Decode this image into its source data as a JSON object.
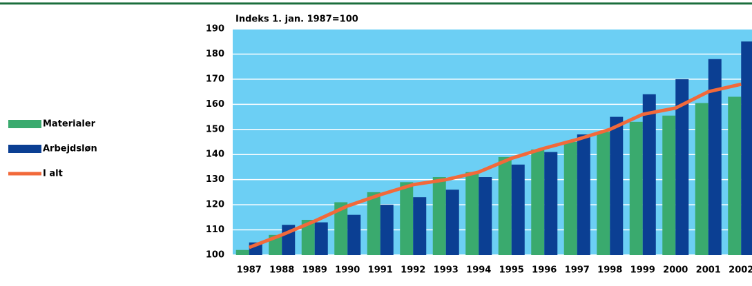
{
  "chart_data": {
    "type": "bar-line",
    "title": "Indeks 1. jan. 1987=100",
    "categories": [
      "1987",
      "1988",
      "1989",
      "1990",
      "1991",
      "1992",
      "1993",
      "1994",
      "1995",
      "1996",
      "1997",
      "1998",
      "1999",
      "2000",
      "2001",
      "2002"
    ],
    "series": [
      {
        "name": "Materialer",
        "type": "bar",
        "color": "#3aaa6e",
        "values": [
          102,
          108,
          114,
          121,
          125,
          129,
          131,
          133,
          139,
          142,
          145,
          149,
          153,
          155.5,
          160.5,
          163
        ]
      },
      {
        "name": "Arbejdsløn",
        "type": "bar",
        "color": "#0b3f93",
        "values": [
          105,
          112,
          113,
          116,
          120,
          123,
          126,
          131,
          136,
          141,
          148,
          155,
          164,
          170,
          178,
          185
        ]
      },
      {
        "name": "I alt",
        "type": "line",
        "color": "#f2693a",
        "values": [
          103,
          108,
          113.5,
          119.5,
          124,
          128,
          130,
          133,
          138.5,
          142.5,
          146,
          150,
          156,
          158.5,
          165,
          168
        ]
      }
    ],
    "ylim": [
      100,
      190
    ],
    "yticks": [
      100,
      110,
      120,
      130,
      140,
      150,
      160,
      170,
      180,
      190
    ],
    "grid": true,
    "background": "#6ccff4"
  }
}
